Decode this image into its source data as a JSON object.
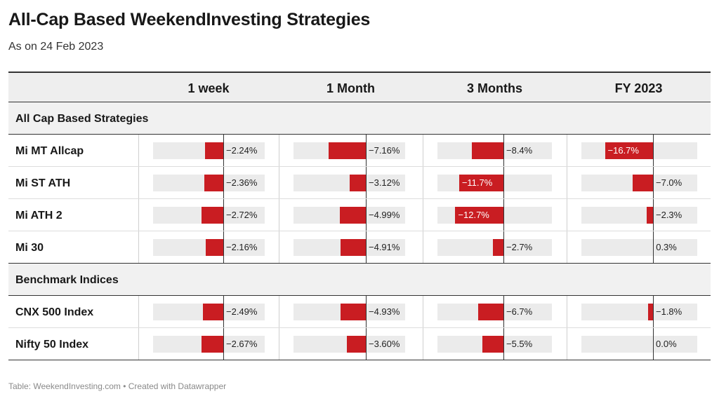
{
  "title": "All-Cap Based WeekendInvesting Strategies",
  "subtitle": "As on 24 Feb 2023",
  "footer": "Table: WeekendInvesting.com • Created with Datawrapper",
  "colors": {
    "bar": "#c91d22",
    "track": "#ebebeb",
    "header_bg": "#eeeeee"
  },
  "chart_data": {
    "type": "table",
    "columns": [
      "1 week",
      "1 Month",
      "3 Months",
      "FY 2023"
    ],
    "groups": [
      {
        "name": "All Cap Based Strategies",
        "rows": [
          {
            "name": "Mi MT Allcap",
            "values": [
              -2.24,
              -7.16,
              -8.4,
              -16.7
            ],
            "labels": [
              "−2.24%",
              "−7.16%",
              "−8.4%",
              "−16.7%"
            ]
          },
          {
            "name": "Mi ST ATH",
            "values": [
              -2.36,
              -3.12,
              -11.7,
              -7.0
            ],
            "labels": [
              "−2.36%",
              "−3.12%",
              "−11.7%",
              "−7.0%"
            ]
          },
          {
            "name": "Mi ATH 2",
            "values": [
              -2.72,
              -4.99,
              -12.7,
              -2.3
            ],
            "labels": [
              "−2.72%",
              "−4.99%",
              "−12.7%",
              "−2.3%"
            ]
          },
          {
            "name": "Mi 30",
            "values": [
              -2.16,
              -4.91,
              -2.7,
              0.3
            ],
            "labels": [
              "−2.16%",
              "−4.91%",
              "−2.7%",
              "0.3%"
            ]
          }
        ]
      },
      {
        "name": "Benchmark Indices",
        "rows": [
          {
            "name": "CNX 500 Index",
            "values": [
              -2.49,
              -4.93,
              -6.7,
              -1.8
            ],
            "labels": [
              "−2.49%",
              "−4.93%",
              "−6.7%",
              "−1.8%"
            ]
          },
          {
            "name": "Nifty 50 Index",
            "values": [
              -2.67,
              -3.6,
              -5.5,
              0.0
            ],
            "labels": [
              "−2.67%",
              "−3.60%",
              "−5.5%",
              "0.0%"
            ]
          }
        ]
      }
    ]
  }
}
